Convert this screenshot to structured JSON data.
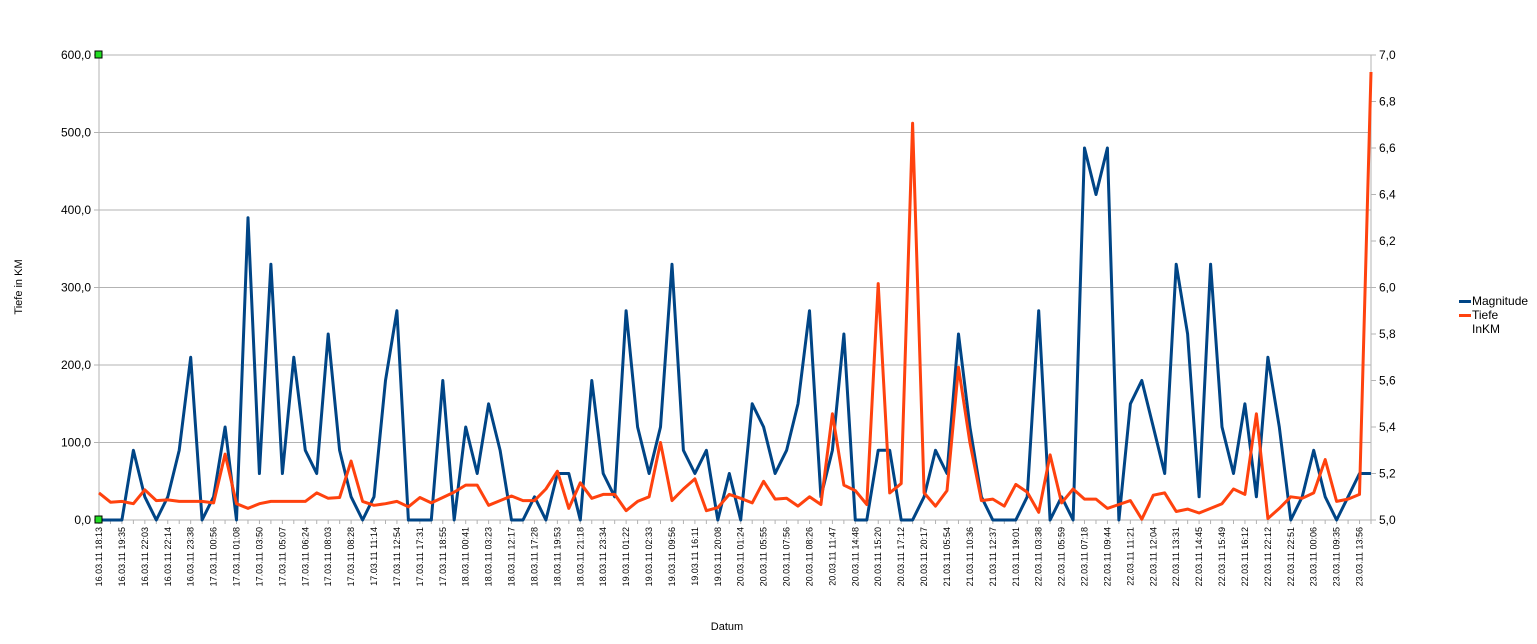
{
  "chart_data": {
    "type": "line",
    "title": "",
    "xlabel": "Datum",
    "ylabel": "Tiefe in KM",
    "ylim": [
      0,
      600
    ],
    "y2lim": [
      5.0,
      7.0
    ],
    "grid": true,
    "legend_position": "right",
    "y_ticks": [
      "0,0",
      "100,0",
      "200,0",
      "300,0",
      "400,0",
      "500,0",
      "600,0"
    ],
    "y2_ticks": [
      "5,0",
      "5,2",
      "5,4",
      "5,6",
      "5,8",
      "6,0",
      "6,2",
      "6,4",
      "6,6",
      "6,8",
      "7,0"
    ],
    "x_tick_labels": [
      "16.03.11 18:13",
      "16.03.11 19:35",
      "16.03.11 22:03",
      "16.03.11 22:14",
      "16.03.11 23:38",
      "17.03.11 00:56",
      "17.03.11 01:08",
      "17.03.11 03:50",
      "17.03.11 05:07",
      "17.03.11 06:24",
      "17.03.11 08:03",
      "17.03.11 08:28",
      "17.03.11 11:14",
      "17.03.11 12:54",
      "17.03.11 17:31",
      "17.03.11 18:55",
      "18.03.11 00:41",
      "18.03.11 03:23",
      "18.03.11 12:17",
      "18.03.11 17:28",
      "18.03.11 19:53",
      "18.03.11 21:18",
      "18.03.11 23:34",
      "19.03.11 01:22",
      "19.03.11 02:33",
      "19.03.11 09:56",
      "19.03.11 16:11",
      "19.03.11 20:08",
      "20.03.11 01:24",
      "20.03.11 05:55",
      "20.03.11 07:56",
      "20.03.11 08:26",
      "20.03.11 11:47",
      "20.03.11 14:48",
      "20.03.11 15:20",
      "20.03.11 17:12",
      "20.03.11 20:17",
      "21.03.11 05:54",
      "21.03.11 10:36",
      "21.03.11 12:37",
      "21.03.11 19:01",
      "22.03.11 03:38",
      "22.03.11 05:59",
      "22.03.11 07:18",
      "22.03.11 09:44",
      "22.03.11 11:21",
      "22.03.11 12:04",
      "22.03.11 13:31",
      "22.03.11 14:45",
      "22.03.11 15:49",
      "22.03.11 16:12",
      "22.03.11 22:12",
      "22.03.11 22:51",
      "23.03.11 00:06",
      "23.03.11 09:35",
      "23.03.11 13:56"
    ],
    "series": [
      {
        "name": "Magnitude",
        "axis": "right",
        "color": "#004586",
        "values": [
          5.0,
          5.0,
          5.0,
          5.3,
          5.1,
          5.0,
          5.1,
          5.3,
          5.7,
          5.0,
          5.1,
          5.4,
          5.0,
          6.3,
          5.2,
          6.1,
          5.2,
          5.7,
          5.3,
          5.2,
          5.8,
          5.3,
          5.1,
          5.0,
          5.1,
          5.6,
          5.9,
          5.0,
          5.0,
          5.0,
          5.6,
          5.0,
          5.4,
          5.2,
          5.5,
          5.3,
          5.0,
          5.0,
          5.1,
          5.0,
          5.2,
          5.2,
          5.0,
          5.6,
          5.2,
          5.1,
          5.9,
          5.4,
          5.2,
          5.4,
          6.1,
          5.3,
          5.2,
          5.3,
          5.0,
          5.2,
          5.0,
          5.5,
          5.4,
          5.2,
          5.3,
          5.5,
          5.9,
          5.1,
          5.3,
          5.8,
          5.0,
          5.0,
          5.3,
          5.3,
          5.0,
          5.0,
          5.1,
          5.3,
          5.2,
          5.8,
          5.4,
          5.1,
          5.0,
          5.0,
          5.0,
          5.1,
          5.9,
          5.0,
          5.1,
          5.0,
          6.6,
          6.4,
          6.6,
          5.0,
          5.5,
          5.6,
          5.4,
          5.2,
          6.1,
          5.8,
          5.1,
          6.1,
          5.4,
          5.2,
          5.5,
          5.1,
          5.7,
          5.4,
          5.0,
          5.1,
          5.3,
          5.1,
          5.0,
          5.1,
          5.2,
          5.2
        ]
      },
      {
        "name": "Tiefe InKM",
        "axis": "left",
        "color": "#ff420e",
        "values": [
          35,
          23,
          24,
          21,
          39,
          25,
          26,
          24,
          24,
          24,
          22,
          85,
          21,
          15,
          21,
          24,
          24,
          24,
          24,
          35,
          28,
          29,
          76,
          24,
          19,
          21,
          24,
          17,
          29,
          22,
          29,
          36,
          45,
          45,
          19,
          25,
          31,
          25,
          25,
          40,
          63,
          15,
          48,
          28,
          33,
          33,
          12,
          24,
          30,
          100,
          25,
          40,
          53,
          12,
          16,
          33,
          28,
          22,
          50,
          27,
          28,
          18,
          30,
          20,
          137,
          45,
          38,
          20,
          305,
          35,
          47,
          512,
          35,
          18,
          38,
          197,
          100,
          25,
          27,
          18,
          46,
          36,
          10,
          84,
          22,
          40,
          27,
          27,
          15,
          20,
          25,
          1,
          32,
          35,
          11,
          14,
          9,
          15,
          21,
          40,
          33,
          137,
          2,
          15,
          30,
          28,
          35,
          78,
          24,
          27,
          33,
          578
        ]
      }
    ]
  }
}
